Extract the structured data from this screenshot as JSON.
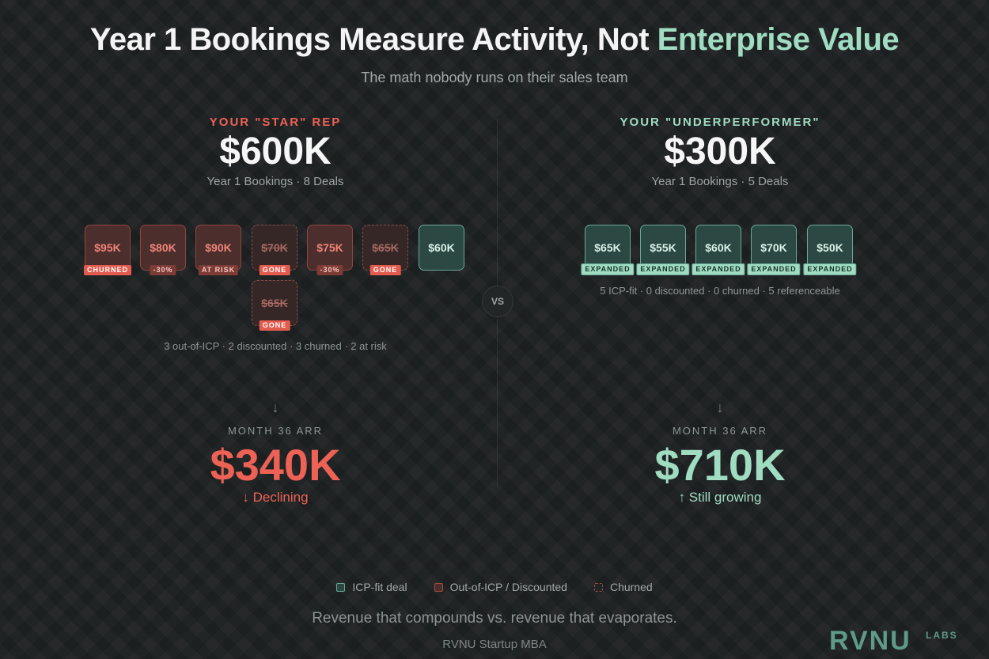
{
  "title_main": "Year 1 Bookings Measure Activity, Not ",
  "title_accent": "Enterprise Value",
  "subtitle": "The math nobody runs on their sales team",
  "left": {
    "label": "YOUR \"STAR\" REP",
    "amount": "$600K",
    "sub": "Year 1 Bookings · 8 Deals",
    "deals": [
      {
        "amount": "$95K",
        "tag": "CHURNED",
        "style": "red",
        "tag_style": "red"
      },
      {
        "amount": "$80K",
        "tag": "-30%",
        "style": "red",
        "tag_style": "dark"
      },
      {
        "amount": "$90K",
        "tag": "AT RISK",
        "style": "red",
        "tag_style": "dark"
      },
      {
        "amount": "$70K",
        "tag": "GONE",
        "style": "gone",
        "tag_style": "red"
      },
      {
        "amount": "$75K",
        "tag": "-30%",
        "style": "red",
        "tag_style": "dark"
      },
      {
        "amount": "$65K",
        "tag": "GONE",
        "style": "gone",
        "tag_style": "red"
      },
      {
        "amount": "$60K",
        "tag": "",
        "style": "green",
        "tag_style": ""
      },
      {
        "amount": "$65K",
        "tag": "GONE",
        "style": "gone",
        "tag_style": "red"
      }
    ],
    "stats": "3 out-of-ICP · 2 discounted · 3 churned · 2 at risk",
    "arrow": "↓",
    "arr_label": "MONTH 36 ARR",
    "arr_value": "$340K",
    "trend": "↓ Declining"
  },
  "vs": "VS",
  "right": {
    "label": "YOUR \"UNDERPERFORMER\"",
    "amount": "$300K",
    "sub": "Year 1 Bookings · 5 Deals",
    "deals": [
      {
        "amount": "$65K",
        "tag": "EXPANDED",
        "style": "green",
        "tag_style": "green"
      },
      {
        "amount": "$55K",
        "tag": "EXPANDED",
        "style": "green",
        "tag_style": "green"
      },
      {
        "amount": "$60K",
        "tag": "EXPANDED",
        "style": "green",
        "tag_style": "green"
      },
      {
        "amount": "$70K",
        "tag": "EXPANDED",
        "style": "green",
        "tag_style": "green"
      },
      {
        "amount": "$50K",
        "tag": "EXPANDED",
        "style": "green",
        "tag_style": "green"
      }
    ],
    "stats": "5 ICP-fit · 0 discounted · 0 churned · 5 referenceable",
    "arrow": "↓",
    "arr_label": "MONTH 36 ARR",
    "arr_value": "$710K",
    "trend": "↑ Still growing"
  },
  "legend": [
    "ICP-fit deal",
    "Out-of-ICP / Discounted",
    "Churned"
  ],
  "tagline": "Revenue that compounds vs. revenue that evaporates.",
  "footer": "RVNU Startup MBA",
  "logo": "RVNU",
  "logo_sup": "LABS",
  "colors": {
    "accent_green": "#9fdcc2",
    "accent_red": "#ee6255",
    "background": "#1e2122"
  }
}
